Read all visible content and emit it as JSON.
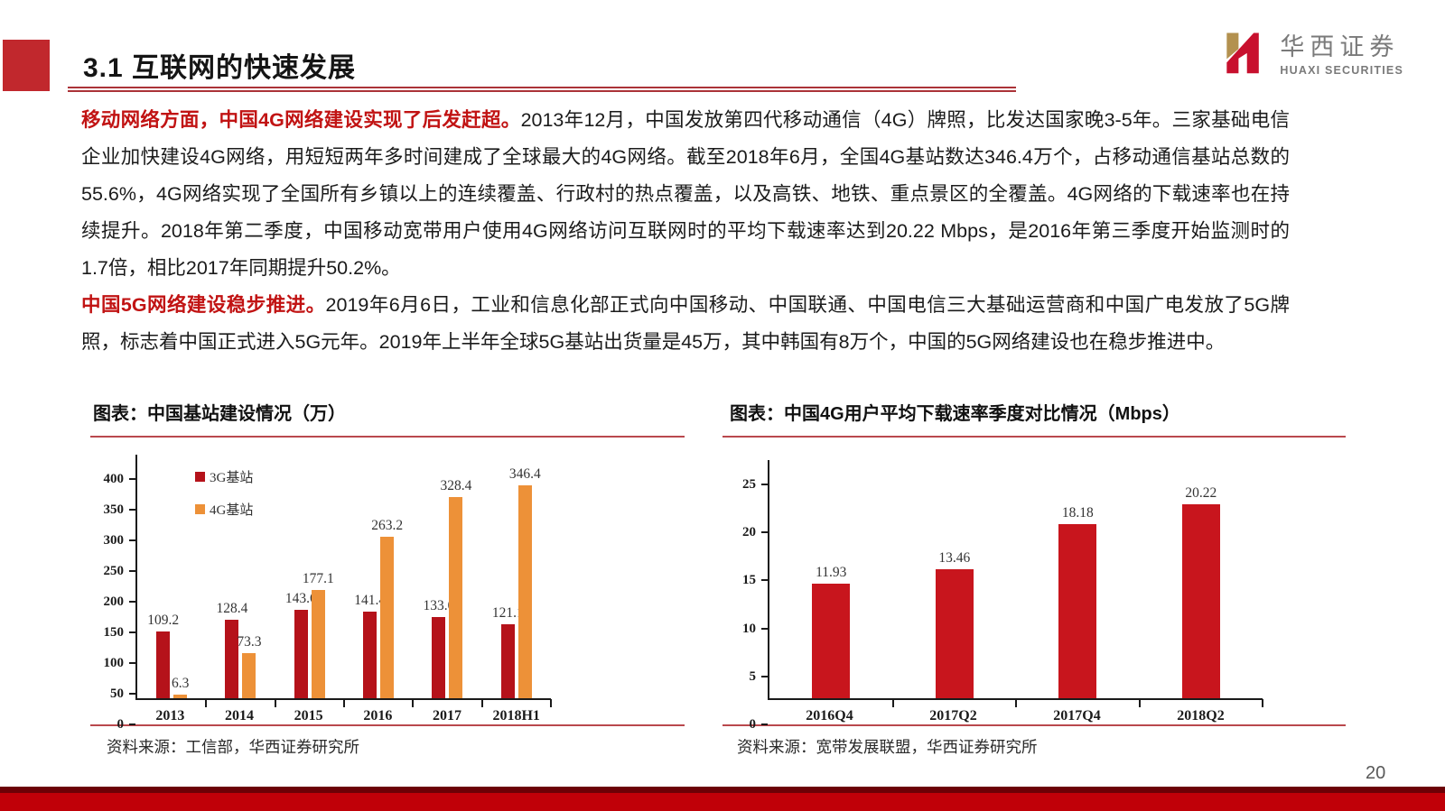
{
  "header": {
    "title": "3.1 互联网的快速发展"
  },
  "logo": {
    "cn": "华西证券",
    "en": "HUAXI SECURITIES"
  },
  "paragraphs": [
    {
      "lead": "移动网络方面，中国4G网络建设实现了后发赶超。",
      "text": "2013年12月，中国发放第四代移动通信（4G）牌照，比发达国家晚3-5年。三家基础电信企业加快建设4G网络，用短短两年多时间建成了全球最大的4G网络。截至2018年6月，全国4G基站数达346.4万个，占移动通信基站总数的55.6%，4G网络实现了全国所有乡镇以上的连续覆盖、行政村的热点覆盖，以及高铁、地铁、重点景区的全覆盖。4G网络的下载速率也在持续提升。2018年第二季度，中国移动宽带用户使用4G网络访问互联网时的平均下载速率达到20.22 Mbps，是2016年第三季度开始监测时的1.7倍，相比2017年同期提升50.2%。"
    },
    {
      "lead": "中国5G网络建设稳步推进。",
      "text": "2019年6月6日，工业和信息化部正式向中国移动、中国联通、中国电信三大基础运营商和中国广电发放了5G牌照，标志着中国正式进入5G元年。2019年上半年全球5G基站出货量是45万，其中韩国有8万个，中国的5G网络建设也在稳步推进中。"
    }
  ],
  "figures": [
    {
      "caption": "图表：中国基站建设情况（万）",
      "source": "资料来源：工信部，华西证券研究所"
    },
    {
      "caption": "图表：中国4G用户平均下载速率季度对比情况（Mbps）",
      "source": "资料来源：宽带发展联盟，华西证券研究所"
    }
  ],
  "chart_data": [
    {
      "type": "bar",
      "title": "中国基站建设情况（万）",
      "categories": [
        "2013",
        "2014",
        "2015",
        "2016",
        "2017",
        "2018H1"
      ],
      "series": [
        {
          "name": "3G基站",
          "color": "#b5121a",
          "values": [
            109.2,
            128.4,
            143.6,
            141.4,
            133.0,
            121.1
          ],
          "value_labels": [
            "109.2",
            "128.4",
            "143.6",
            "141.4",
            "133.0",
            "121.1"
          ]
        },
        {
          "name": "4G基站",
          "color": "#ed9138",
          "values": [
            6.3,
            73.3,
            177.1,
            263.2,
            328.4,
            346.4
          ],
          "value_labels": [
            "6.3",
            "73.3",
            "177.1",
            "263.2",
            "328.4",
            "346.4"
          ]
        }
      ],
      "xlabel": "",
      "ylabel": "",
      "ylim": [
        0,
        400
      ],
      "yticks": [
        0,
        50,
        100,
        150,
        200,
        250,
        300,
        350,
        400
      ],
      "grid": false,
      "legend_position": "top-left"
    },
    {
      "type": "bar",
      "title": "中国4G用户平均下载速率季度对比情况（Mbps）",
      "categories": [
        "2016Q4",
        "2017Q2",
        "2017Q4",
        "2018Q2"
      ],
      "series": [
        {
          "name": "平均下载速率",
          "color": "#c8151d",
          "values": [
            11.93,
            13.46,
            18.18,
            20.22
          ],
          "value_labels": [
            "11.93",
            "13.46",
            "18.18",
            "20.22"
          ]
        }
      ],
      "xlabel": "",
      "ylabel": "",
      "ylim": [
        0,
        25
      ],
      "yticks": [
        0,
        5,
        10,
        15,
        20,
        25
      ],
      "grid": false,
      "legend_position": "none"
    }
  ],
  "page_number": "20",
  "colors": {
    "accent_red": "#c1282d",
    "lead_text_red": "#c11313",
    "rule_red": "#b9484d",
    "bar_dark_red": "#b5121a",
    "bar_orange": "#ed9138",
    "bar_bright_red": "#c8151d",
    "bottom_bar_red": "#c00008",
    "bottom_bar_dark": "#6c0106",
    "logo_red": "#c8102e",
    "logo_gold": "#b3914f",
    "logo_gray": "#7a7a7a"
  }
}
